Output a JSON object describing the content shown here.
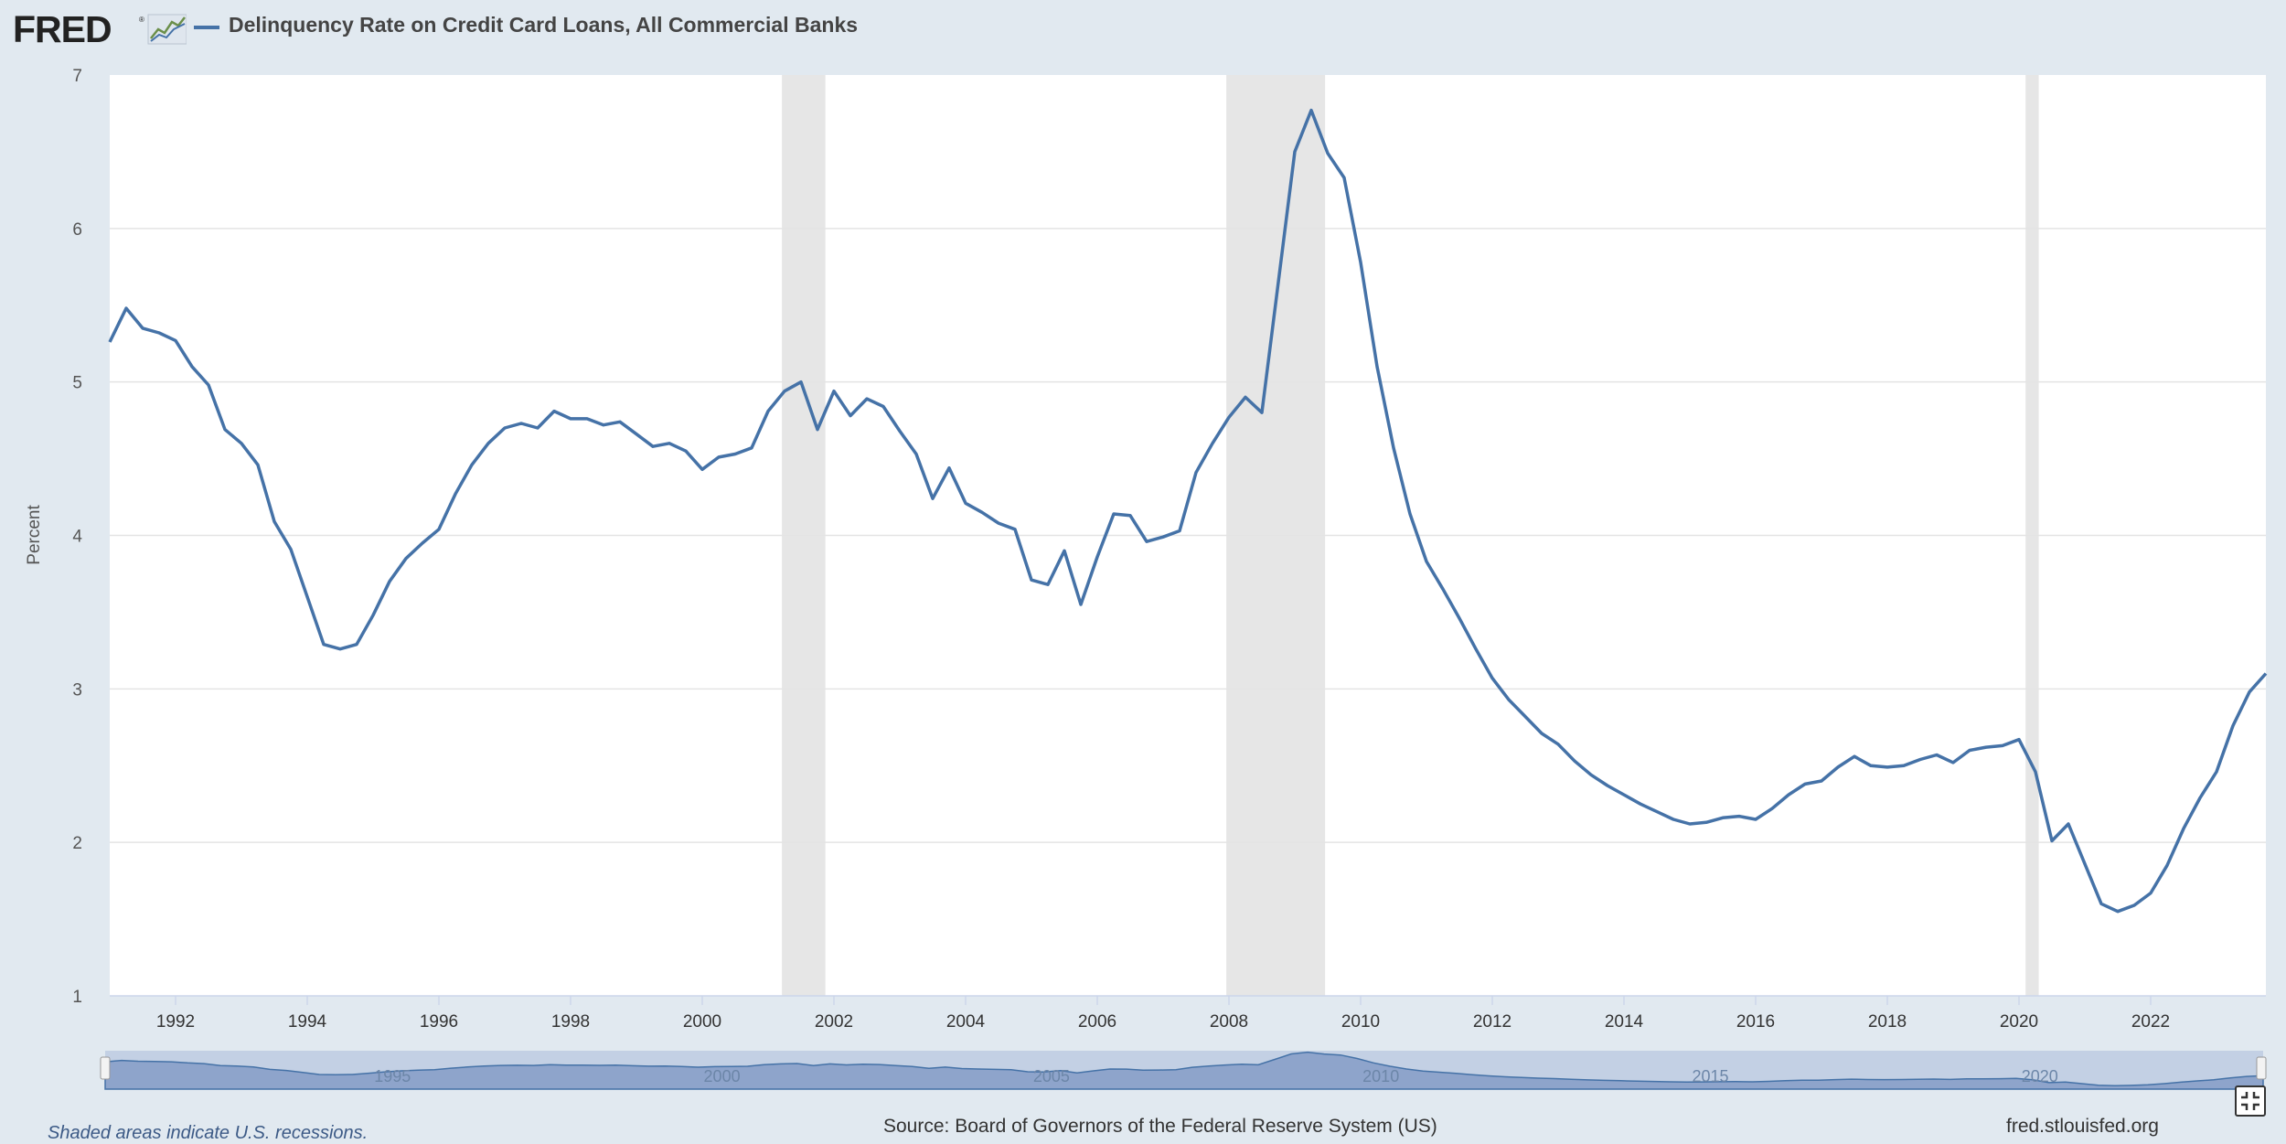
{
  "header": {
    "logo_text": "FRED",
    "title": "Delinquency Rate on Credit Card Loans, All Commercial Banks"
  },
  "colors": {
    "series": "#4572a7",
    "recession": "#e6e6e6",
    "navigator_fill": "#8ea4cb",
    "navigator_bg": "#c3d0e4"
  },
  "icons": [
    "fred-logo-icon",
    "line-chart-icon",
    "fullscreen-icon"
  ],
  "chart_data": {
    "type": "line",
    "title": "Delinquency Rate on Credit Card Loans, All Commercial Banks",
    "ylabel": "Percent",
    "xlabel": "",
    "ylim": [
      1,
      7
    ],
    "xlim": [
      1991.0,
      2023.75
    ],
    "yticks": [
      1,
      2,
      3,
      4,
      5,
      6,
      7
    ],
    "xticks": [
      1992,
      1994,
      1996,
      1998,
      2000,
      2002,
      2004,
      2006,
      2008,
      2010,
      2012,
      2014,
      2016,
      2018,
      2020,
      2022
    ],
    "navigator_ticks": [
      1995,
      2000,
      2005,
      2010,
      2015,
      2020
    ],
    "grid": true,
    "legend": "top-left",
    "recessions": [
      [
        2001.21,
        2001.87
      ],
      [
        2007.96,
        2009.46
      ],
      [
        2020.1,
        2020.3
      ]
    ],
    "series": [
      {
        "name": "Delinquency Rate on Credit Card Loans, All Commercial Banks",
        "x": [
          1991.0,
          1991.25,
          1991.5,
          1991.75,
          1992.0,
          1992.25,
          1992.5,
          1992.75,
          1993.0,
          1993.25,
          1993.5,
          1993.75,
          1994.0,
          1994.25,
          1994.5,
          1994.75,
          1995.0,
          1995.25,
          1995.5,
          1995.75,
          1996.0,
          1996.25,
          1996.5,
          1996.75,
          1997.0,
          1997.25,
          1997.5,
          1997.75,
          1998.0,
          1998.25,
          1998.5,
          1998.75,
          1999.0,
          1999.25,
          1999.5,
          1999.75,
          2000.0,
          2000.25,
          2000.5,
          2000.75,
          2001.0,
          2001.25,
          2001.5,
          2001.75,
          2002.0,
          2002.25,
          2002.5,
          2002.75,
          2003.0,
          2003.25,
          2003.5,
          2003.75,
          2004.0,
          2004.25,
          2004.5,
          2004.75,
          2005.0,
          2005.25,
          2005.5,
          2005.75,
          2006.0,
          2006.25,
          2006.5,
          2006.75,
          2007.0,
          2007.25,
          2007.5,
          2007.75,
          2008.0,
          2008.25,
          2008.5,
          2008.75,
          2009.0,
          2009.25,
          2009.5,
          2009.75,
          2010.0,
          2010.25,
          2010.5,
          2010.75,
          2011.0,
          2011.25,
          2011.5,
          2011.75,
          2012.0,
          2012.25,
          2012.5,
          2012.75,
          2013.0,
          2013.25,
          2013.5,
          2013.75,
          2014.0,
          2014.25,
          2014.5,
          2014.75,
          2015.0,
          2015.25,
          2015.5,
          2015.75,
          2016.0,
          2016.25,
          2016.5,
          2016.75,
          2017.0,
          2017.25,
          2017.5,
          2017.75,
          2018.0,
          2018.25,
          2018.5,
          2018.75,
          2019.0,
          2019.25,
          2019.5,
          2019.75,
          2020.0,
          2020.25,
          2020.5,
          2020.75,
          2021.0,
          2021.25,
          2021.5,
          2021.75,
          2022.0,
          2022.25,
          2022.5,
          2022.75,
          2023.0,
          2023.25,
          2023.5,
          2023.75
        ],
        "values": [
          5.26,
          5.48,
          5.35,
          5.32,
          5.27,
          5.1,
          4.98,
          4.69,
          4.6,
          4.46,
          4.09,
          3.91,
          3.6,
          3.29,
          3.26,
          3.29,
          3.48,
          3.7,
          3.85,
          3.95,
          4.04,
          4.27,
          4.46,
          4.6,
          4.7,
          4.73,
          4.7,
          4.81,
          4.76,
          4.76,
          4.72,
          4.74,
          4.66,
          4.58,
          4.6,
          4.55,
          4.43,
          4.51,
          4.53,
          4.57,
          4.81,
          4.94,
          5.0,
          4.69,
          4.94,
          4.78,
          4.89,
          4.84,
          4.68,
          4.53,
          4.24,
          4.44,
          4.21,
          4.15,
          4.08,
          4.04,
          3.71,
          3.68,
          3.9,
          3.55,
          3.86,
          4.14,
          4.13,
          3.96,
          3.99,
          4.03,
          4.41,
          4.6,
          4.77,
          4.9,
          4.8,
          5.65,
          6.5,
          6.77,
          6.49,
          6.33,
          5.78,
          5.1,
          4.57,
          4.14,
          3.83,
          3.65,
          3.46,
          3.26,
          3.07,
          2.93,
          2.82,
          2.71,
          2.64,
          2.53,
          2.44,
          2.37,
          2.31,
          2.25,
          2.2,
          2.15,
          2.12,
          2.13,
          2.16,
          2.17,
          2.15,
          2.22,
          2.31,
          2.38,
          2.4,
          2.49,
          2.56,
          2.5,
          2.49,
          2.5,
          2.54,
          2.57,
          2.52,
          2.6,
          2.62,
          2.63,
          2.67,
          2.46,
          2.01,
          2.12,
          1.86,
          1.6,
          1.55,
          1.59,
          1.67,
          1.85,
          2.09,
          2.29,
          2.46,
          2.76,
          2.98,
          3.1
        ]
      }
    ]
  },
  "footer": {
    "note": "Shaded areas indicate U.S. recessions.",
    "source": "Source: Board of Governors of the Federal Reserve System (US)",
    "url": "fred.stlouisfed.org"
  }
}
